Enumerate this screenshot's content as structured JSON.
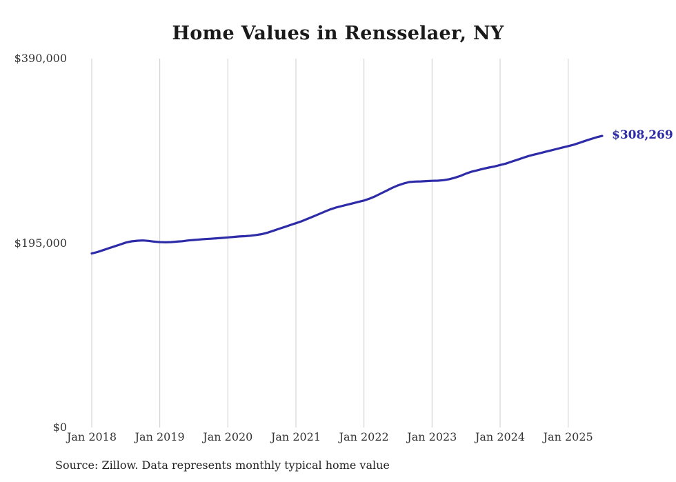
{
  "title": "Home Values in Rensselaer, NY",
  "source_note": "Source: Zillow. Data represents monthly typical home value",
  "end_label": "$308,269",
  "colors": {
    "line": "#2e2ba8",
    "grid": "#cccccc",
    "title_text": "#1a1a1a",
    "axis_text": "#333333",
    "end_label_text": "#2e2ba8"
  },
  "chart_data": {
    "type": "line",
    "title": "Home Values in Rensselaer, NY",
    "xlabel": "",
    "ylabel": "",
    "x_start": "Jan 2018",
    "x_tick_labels": [
      "Jan 2018",
      "Jan 2019",
      "Jan 2020",
      "Jan 2021",
      "Jan 2022",
      "Jan 2023",
      "Jan 2024",
      "Jan 2025"
    ],
    "y_ticks": [
      0,
      195000,
      390000
    ],
    "y_tick_labels": [
      "$0",
      "$195,000",
      "$390,000"
    ],
    "ylim": [
      0,
      390000
    ],
    "grid": "vertical-only",
    "legend": "none",
    "last_point_label": "$308,269",
    "last_value": 308269,
    "series": [
      {
        "name": "Typical home value (monthly)",
        "values": [
          184000,
          185500,
          187500,
          189500,
          191500,
          193500,
          195500,
          196800,
          197500,
          197800,
          197300,
          196500,
          196000,
          195800,
          196000,
          196500,
          197000,
          197800,
          198300,
          198800,
          199200,
          199600,
          200000,
          200500,
          201000,
          201500,
          202000,
          202300,
          202800,
          203500,
          204500,
          206000,
          208000,
          210000,
          212000,
          214000,
          216000,
          218000,
          220500,
          223000,
          225500,
          228000,
          230500,
          232500,
          234000,
          235500,
          237000,
          238500,
          240000,
          242000,
          244500,
          247500,
          250500,
          253500,
          256000,
          258000,
          259500,
          260000,
          260200,
          260500,
          260800,
          261000,
          261500,
          262500,
          264000,
          266000,
          268500,
          270500,
          272000,
          273500,
          274800,
          276000,
          277500,
          279000,
          281000,
          283000,
          285000,
          287000,
          288500,
          290000,
          291500,
          293000,
          294500,
          296000,
          297500,
          299000,
          301000,
          303000,
          305000,
          306800,
          308269
        ]
      }
    ]
  }
}
